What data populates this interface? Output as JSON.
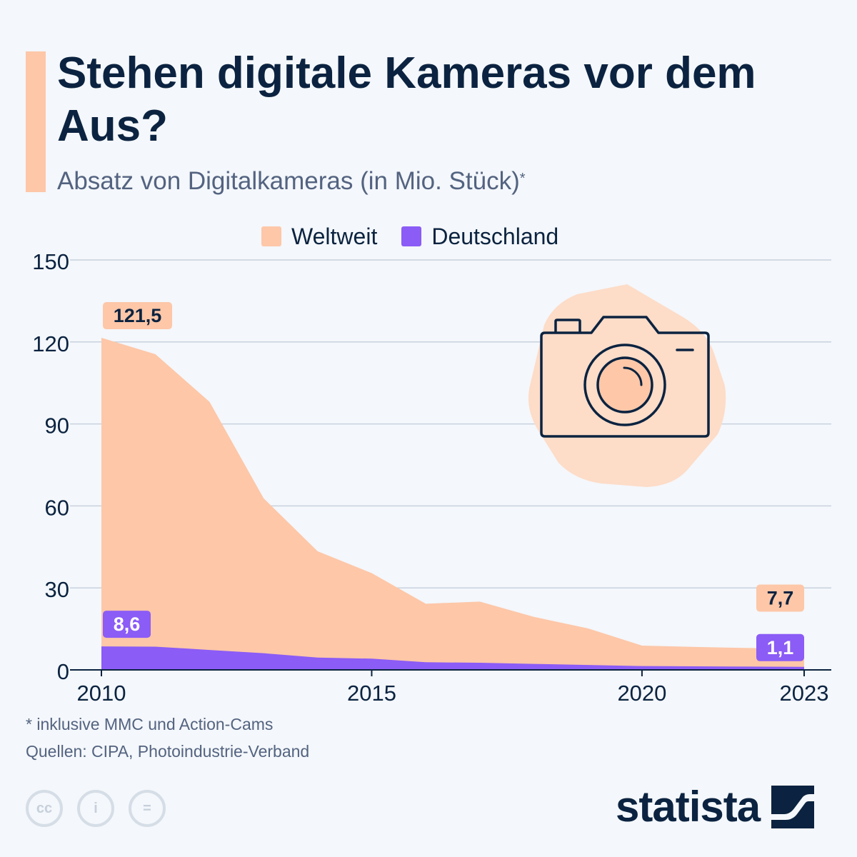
{
  "header": {
    "title": "Stehen digitale Kameras vor dem Aus?",
    "subtitle": "Absatz von Digitalkameras (in Mio. Stück)",
    "subtitle_marker": "*"
  },
  "legend": [
    {
      "label": "Weltweit",
      "color": "#fdc7a8"
    },
    {
      "label": "Deutschland",
      "color": "#8b5cf6"
    }
  ],
  "chart_data": {
    "type": "area",
    "x": [
      2010,
      2011,
      2012,
      2013,
      2014,
      2015,
      2016,
      2017,
      2018,
      2019,
      2020,
      2021,
      2022,
      2023
    ],
    "series": [
      {
        "name": "Weltweit",
        "color": "#fdc7a8",
        "values": [
          121.5,
          115.5,
          98.1,
          62.8,
          43.4,
          35.4,
          24.2,
          25.0,
          19.4,
          15.2,
          8.9,
          8.4,
          8.0,
          7.7
        ]
      },
      {
        "name": "Deutschland",
        "color": "#8b5cf6",
        "values": [
          8.6,
          8.5,
          7.3,
          6.1,
          4.5,
          4.1,
          2.8,
          2.6,
          2.2,
          1.8,
          1.4,
          1.3,
          1.2,
          1.1
        ]
      }
    ],
    "ylim": [
      0,
      150
    ],
    "yticks": [
      0,
      30,
      60,
      90,
      120,
      150
    ],
    "xticks": [
      2010,
      2015,
      2020,
      2023
    ],
    "grid": true,
    "legend_position": "top",
    "annotations": [
      {
        "series": "Weltweit",
        "x": 2010,
        "label": "121,5"
      },
      {
        "series": "Weltweit",
        "x": 2023,
        "label": "7,7"
      },
      {
        "series": "Deutschland",
        "x": 2010,
        "label": "8,6"
      },
      {
        "series": "Deutschland",
        "x": 2023,
        "label": "1,1"
      }
    ]
  },
  "footer": {
    "footnote": "* inklusive MMC und Action-Cams",
    "sources": "Quellen: CIPA, Photoindustrie-Verband",
    "license_icons": [
      "cc-icon",
      "by-icon",
      "nd-icon"
    ],
    "license_glyphs": [
      "cc",
      "i",
      "="
    ],
    "brand": "statista"
  }
}
